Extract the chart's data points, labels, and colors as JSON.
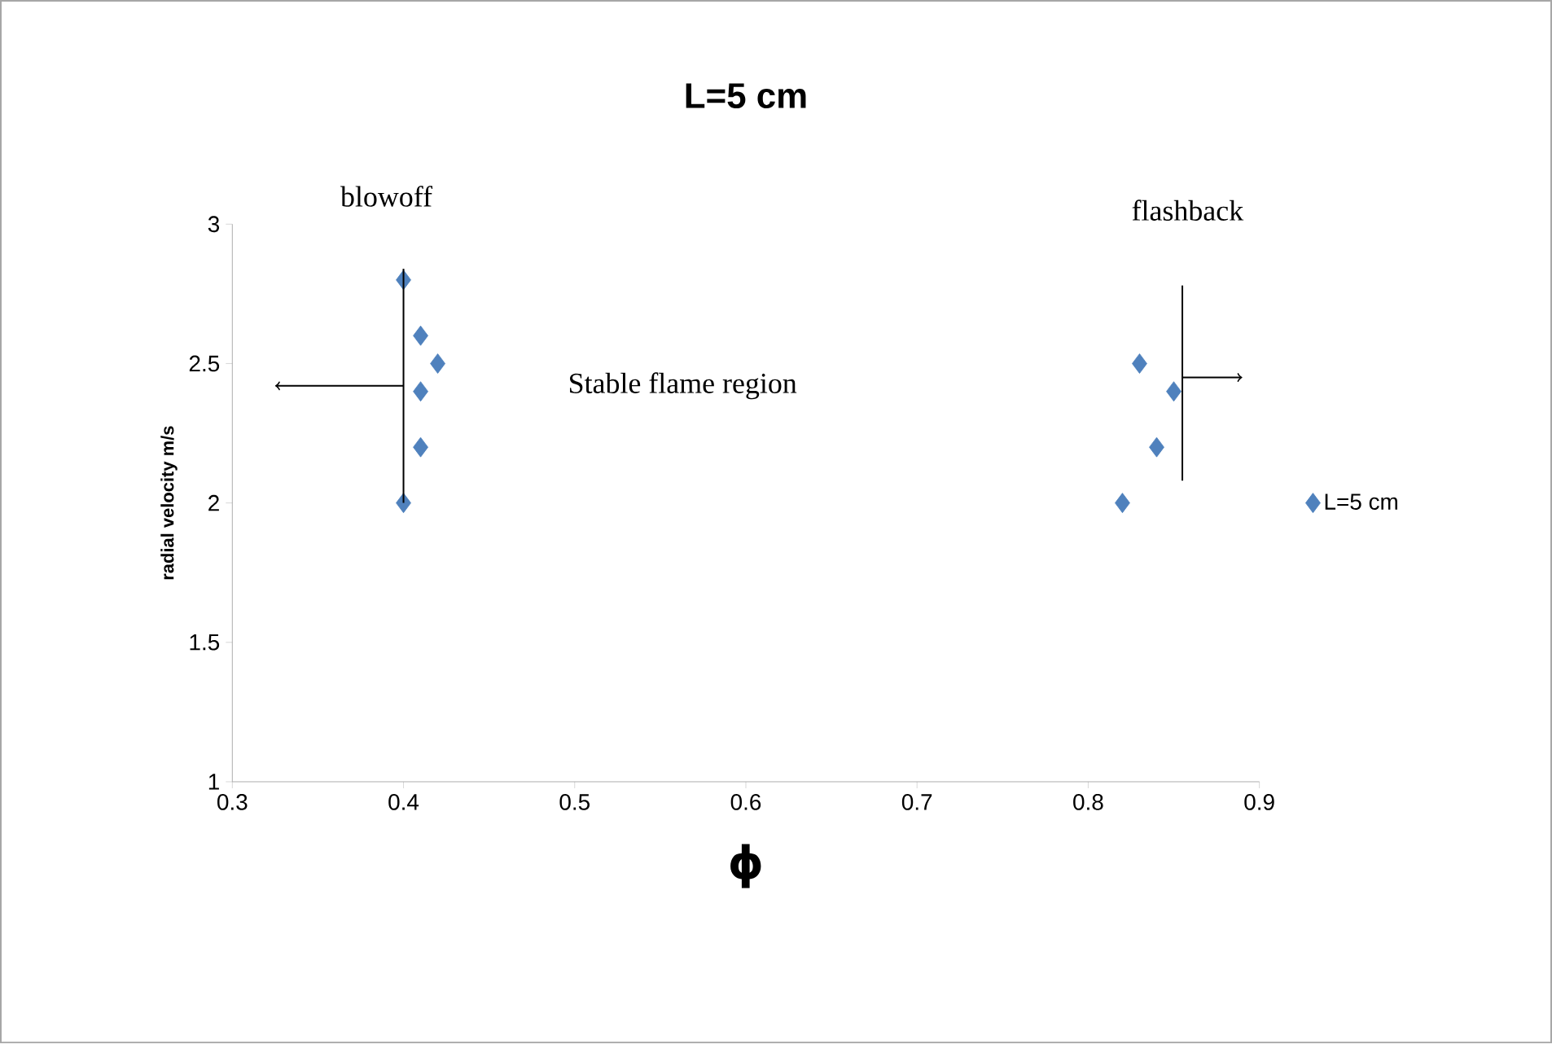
{
  "chart_data": {
    "type": "scatter",
    "title": "L=5 cm",
    "xlabel": "ϕ",
    "ylabel": "radial velocity m/s",
    "x": [
      0.4,
      0.41,
      0.42,
      0.41,
      0.41,
      0.4,
      0.83,
      0.85,
      0.84,
      0.82
    ],
    "series": [
      {
        "name": "L=5 cm",
        "color": "#4f81bd",
        "values": [
          2.8,
          2.6,
          2.5,
          2.4,
          2.2,
          2.0,
          2.5,
          2.4,
          2.2,
          2.0
        ]
      }
    ],
    "xlim": [
      0.3,
      0.9
    ],
    "ylim": [
      1,
      3
    ],
    "xticks": [
      0.3,
      0.4,
      0.5,
      0.6,
      0.7,
      0.8,
      0.9
    ],
    "yticks": [
      1,
      1.5,
      2,
      2.5,
      3
    ],
    "annotations": [
      "blowoff",
      "flashback",
      "Stable flame region"
    ],
    "marker": "diamond",
    "legend": "right",
    "grid": false
  }
}
